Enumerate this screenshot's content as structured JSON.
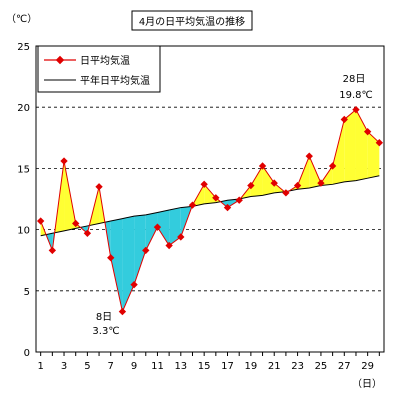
{
  "chart_data": {
    "type": "line",
    "title": "4月の日平均気温の推移",
    "ylabel": "（℃）",
    "xlabel": "（日）",
    "ylim": [
      0,
      25
    ],
    "yticks": [
      0,
      5,
      10,
      15,
      20,
      25
    ],
    "x": [
      1,
      2,
      3,
      4,
      5,
      6,
      7,
      8,
      9,
      10,
      11,
      12,
      13,
      14,
      15,
      16,
      17,
      18,
      19,
      20,
      21,
      22,
      23,
      24,
      25,
      26,
      27,
      28,
      29,
      30
    ],
    "series": [
      {
        "name": "日平均気温",
        "color": "#e00000",
        "values": [
          10.7,
          8.3,
          15.6,
          10.5,
          9.7,
          13.5,
          7.7,
          3.3,
          5.5,
          8.3,
          10.2,
          8.7,
          9.4,
          12.0,
          13.7,
          12.6,
          11.8,
          12.4,
          13.6,
          15.2,
          13.8,
          13.0,
          13.6,
          16.0,
          13.8,
          15.2,
          19.0,
          19.8,
          18.0,
          17.1
        ]
      },
      {
        "name": "平年日平均気温",
        "color": "#000000",
        "values": [
          9.5,
          9.7,
          9.9,
          10.1,
          10.3,
          10.5,
          10.7,
          10.9,
          11.1,
          11.2,
          11.4,
          11.6,
          11.8,
          11.9,
          12.1,
          12.2,
          12.4,
          12.5,
          12.7,
          12.8,
          13.0,
          13.1,
          13.3,
          13.4,
          13.6,
          13.7,
          13.9,
          14.0,
          14.2,
          14.4
        ]
      }
    ],
    "fill_above_color": "#ffff33",
    "fill_below_color": "#33ccdd",
    "grid": "horizontal dashed",
    "legend": "top-left",
    "annotations": [
      {
        "day": 28,
        "label_day": "28日",
        "label_value": "19.8℃"
      },
      {
        "day": 8,
        "label_day": "8日",
        "label_value": "3.3℃"
      }
    ]
  }
}
